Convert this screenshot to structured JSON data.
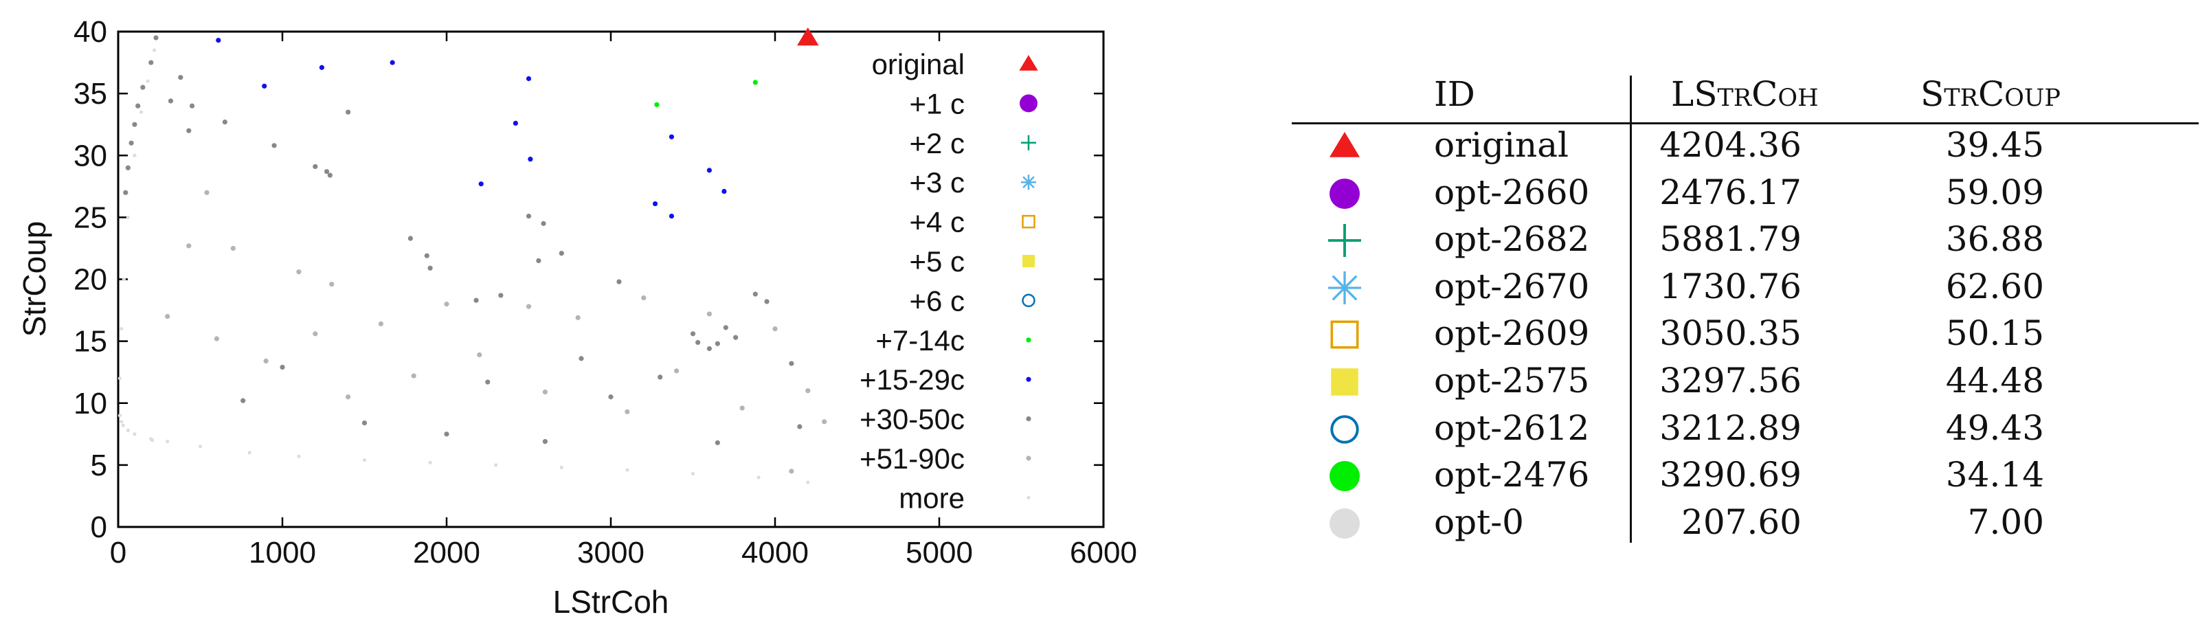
{
  "chart_data": {
    "type": "scatter",
    "xlabel": "LStrCoh",
    "ylabel": "StrCoup",
    "xlim": [
      0,
      6000
    ],
    "ylim": [
      0,
      40
    ],
    "xticks": [
      0,
      1000,
      2000,
      3000,
      4000,
      5000,
      6000
    ],
    "yticks": [
      0,
      5,
      10,
      15,
      20,
      25,
      30,
      35,
      40
    ],
    "legend_position": "top-right inside",
    "series": [
      {
        "name": "original",
        "marker": "triangle",
        "color": "#ee1c1c",
        "points": [
          [
            4200,
            39.5
          ]
        ]
      },
      {
        "name": "+1 c",
        "marker": "filled-circle",
        "color": "#9400d3",
        "points": []
      },
      {
        "name": "+2 c",
        "marker": "plus",
        "color": "#009e73",
        "points": []
      },
      {
        "name": "+3 c",
        "marker": "asterisk",
        "color": "#56b4e9",
        "points": []
      },
      {
        "name": "+4 c",
        "marker": "open-square",
        "color": "#e69f00",
        "points": []
      },
      {
        "name": "+5 c",
        "marker": "filled-square",
        "color": "#f0e442",
        "points": []
      },
      {
        "name": "+6 c",
        "marker": "open-circle",
        "color": "#0072b2",
        "points": []
      },
      {
        "name": "+7-14c",
        "marker": "dot",
        "color": "#00ee00",
        "points": [
          [
            3280,
            34.1
          ],
          [
            3880,
            35.9
          ]
        ]
      },
      {
        "name": "+15-29c",
        "marker": "dot",
        "color": "#1010ee",
        "points": [
          [
            610,
            39.3
          ],
          [
            890,
            35.6
          ],
          [
            1240,
            37.1
          ],
          [
            1670,
            37.5
          ],
          [
            2500,
            36.2
          ],
          [
            2420,
            32.6
          ],
          [
            2510,
            29.7
          ],
          [
            2210,
            27.7
          ],
          [
            3370,
            31.5
          ],
          [
            3600,
            28.8
          ],
          [
            3690,
            27.1
          ],
          [
            3270,
            26.1
          ],
          [
            3370,
            25.1
          ]
        ]
      },
      {
        "name": "+30-50c",
        "marker": "dot",
        "color": "#888888",
        "points": [
          [
            230,
            39.5
          ],
          [
            200,
            37.5
          ],
          [
            150,
            35.5
          ],
          [
            120,
            34.0
          ],
          [
            100,
            32.5
          ],
          [
            80,
            31.0
          ],
          [
            60,
            29.0
          ],
          [
            45,
            27.0
          ],
          [
            380,
            36.3
          ],
          [
            320,
            34.4
          ],
          [
            450,
            34.0
          ],
          [
            430,
            32.0
          ],
          [
            650,
            32.7
          ],
          [
            950,
            30.8
          ],
          [
            1200,
            29.1
          ],
          [
            1270,
            28.7
          ],
          [
            1290,
            28.4
          ],
          [
            1400,
            33.5
          ],
          [
            1780,
            23.3
          ],
          [
            1880,
            21.9
          ],
          [
            1900,
            20.9
          ],
          [
            2500,
            25.1
          ],
          [
            2590,
            24.5
          ],
          [
            2700,
            22.1
          ],
          [
            2560,
            21.5
          ],
          [
            2330,
            18.7
          ],
          [
            2180,
            18.3
          ],
          [
            3050,
            19.8
          ],
          [
            3500,
            15.6
          ],
          [
            3530,
            14.9
          ],
          [
            3600,
            14.4
          ],
          [
            3650,
            14.8
          ],
          [
            3880,
            18.8
          ],
          [
            3950,
            18.2
          ],
          [
            3700,
            16.1
          ],
          [
            3760,
            15.3
          ],
          [
            4100,
            13.2
          ],
          [
            3000,
            10.5
          ],
          [
            2000,
            7.5
          ],
          [
            1500,
            8.4
          ],
          [
            2600,
            6.9
          ],
          [
            3300,
            12.1
          ],
          [
            1000,
            12.9
          ],
          [
            760,
            10.2
          ],
          [
            2820,
            13.6
          ],
          [
            4150,
            8.1
          ],
          [
            3650,
            6.8
          ],
          [
            2250,
            11.7
          ]
        ]
      },
      {
        "name": "+51-90c",
        "marker": "dot",
        "color": "#b4b4b4",
        "points": [
          [
            540,
            27.0
          ],
          [
            430,
            22.7
          ],
          [
            700,
            22.5
          ],
          [
            1100,
            20.6
          ],
          [
            1300,
            19.6
          ],
          [
            1600,
            16.4
          ],
          [
            2000,
            18.0
          ],
          [
            2500,
            17.8
          ],
          [
            2800,
            16.9
          ],
          [
            3200,
            18.5
          ],
          [
            3600,
            17.2
          ],
          [
            4000,
            16.0
          ],
          [
            4200,
            11.0
          ],
          [
            4300,
            8.5
          ],
          [
            3800,
            9.6
          ],
          [
            3100,
            9.3
          ],
          [
            2600,
            10.9
          ],
          [
            2200,
            13.9
          ],
          [
            1800,
            12.2
          ],
          [
            1400,
            10.5
          ],
          [
            900,
            13.4
          ],
          [
            600,
            15.2
          ],
          [
            300,
            17.0
          ],
          [
            1200,
            15.6
          ],
          [
            3400,
            12.6
          ],
          [
            4100,
            4.5
          ]
        ]
      },
      {
        "name": "more",
        "marker": "dot",
        "color": "#dddddd",
        "points": [
          [
            207.6,
            7.0
          ],
          [
            10,
            9.0
          ],
          [
            20,
            8.5
          ],
          [
            30,
            8.2
          ],
          [
            60,
            7.8
          ],
          [
            100,
            7.5
          ],
          [
            200,
            7.1
          ],
          [
            300,
            6.9
          ],
          [
            500,
            6.5
          ],
          [
            800,
            6.0
          ],
          [
            1100,
            5.7
          ],
          [
            1500,
            5.4
          ],
          [
            1900,
            5.2
          ],
          [
            2300,
            5.0
          ],
          [
            2700,
            4.8
          ],
          [
            3100,
            4.6
          ],
          [
            3500,
            4.3
          ],
          [
            3900,
            4.0
          ],
          [
            4200,
            3.6
          ],
          [
            10,
            12.0
          ],
          [
            20,
            16.0
          ],
          [
            35,
            20.0
          ],
          [
            60,
            25.0
          ],
          [
            100,
            30.0
          ],
          [
            140,
            33.5
          ],
          [
            180,
            36.0
          ],
          [
            220,
            38.5
          ]
        ]
      }
    ]
  },
  "table": {
    "headers": [
      "ID",
      "LStrCoh",
      "StrCoup"
    ],
    "rows": [
      {
        "symbol": "triangle",
        "color": "#ee1c1c",
        "id": "original",
        "lstrcoh": "4204.36",
        "strcoup": "39.45"
      },
      {
        "symbol": "filled-circle",
        "color": "#9400d3",
        "id": "opt-2660",
        "lstrcoh": "2476.17",
        "strcoup": "59.09"
      },
      {
        "symbol": "plus",
        "color": "#009e73",
        "id": "opt-2682",
        "lstrcoh": "5881.79",
        "strcoup": "36.88"
      },
      {
        "symbol": "asterisk",
        "color": "#56b4e9",
        "id": "opt-2670",
        "lstrcoh": "1730.76",
        "strcoup": "62.60"
      },
      {
        "symbol": "open-square",
        "color": "#e69f00",
        "id": "opt-2609",
        "lstrcoh": "3050.35",
        "strcoup": "50.15"
      },
      {
        "symbol": "filled-square",
        "color": "#f0e442",
        "id": "opt-2575",
        "lstrcoh": "3297.56",
        "strcoup": "44.48"
      },
      {
        "symbol": "open-circle",
        "color": "#0072b2",
        "id": "opt-2612",
        "lstrcoh": "3212.89",
        "strcoup": "49.43"
      },
      {
        "symbol": "filled-circle",
        "color": "#00ee00",
        "id": "opt-2476",
        "lstrcoh": "3290.69",
        "strcoup": "34.14"
      },
      {
        "symbol": "filled-circle",
        "color": "#dddddd",
        "id": "opt-0",
        "lstrcoh": "207.60",
        "strcoup": "7.00"
      }
    ]
  }
}
